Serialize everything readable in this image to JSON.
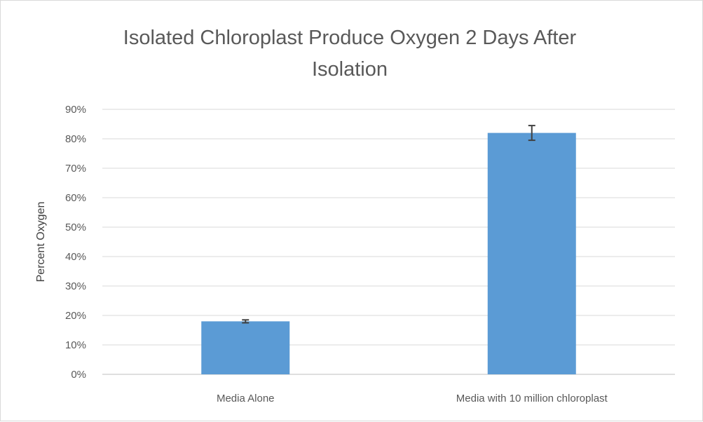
{
  "chart_data": {
    "type": "bar",
    "title_lines": [
      "Isolated Chloroplast Produce Oxygen 2 Days After",
      "Isolation"
    ],
    "xlabel": "",
    "ylabel": "Percent Oxygen",
    "categories": [
      "Media Alone",
      "Media with 10 million chloroplast"
    ],
    "values": [
      18,
      82
    ],
    "error": [
      0.5,
      2.5
    ],
    "ylim": [
      0,
      90
    ],
    "yticks": [
      0,
      10,
      20,
      30,
      40,
      50,
      60,
      70,
      80,
      90
    ],
    "ytick_labels": [
      "0%",
      "10%",
      "20%",
      "30%",
      "40%",
      "50%",
      "60%",
      "70%",
      "80%",
      "90%"
    ],
    "grid": true,
    "bar_color": "#5b9bd5",
    "error_color": "#404040"
  }
}
